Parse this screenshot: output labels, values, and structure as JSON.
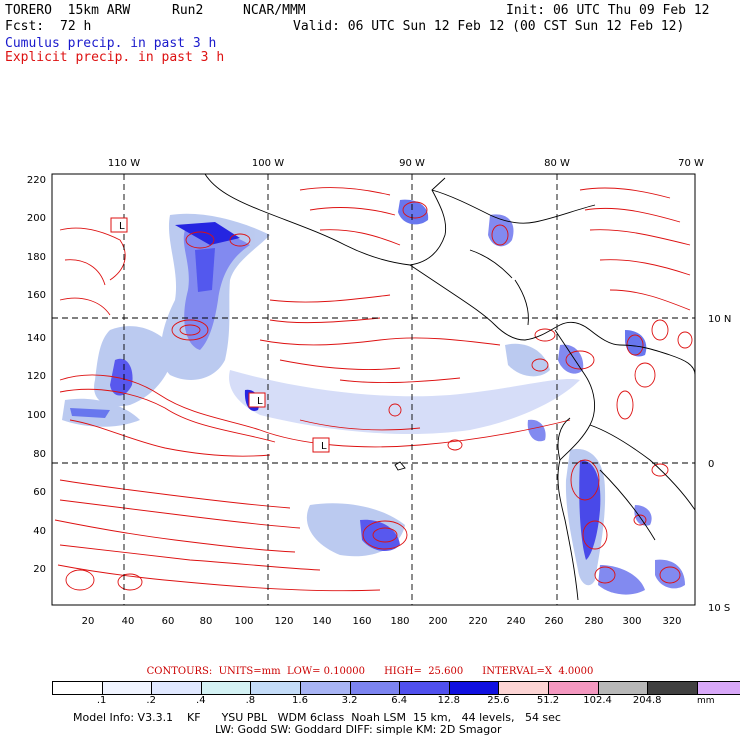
{
  "header": {
    "model": "TORERO  15km ARW",
    "run": "Run2",
    "org": "NCAR/MMM",
    "init": "Init: 06 UTC Thu 09 Feb 12",
    "fcst_label": "Fcst:",
    "fcst_value": "72 h",
    "valid": "Valid: 06 UTC Sun 12 Feb 12 (00 CST Sun 12 Feb 12)",
    "cumulus": "Cumulus precip. in past 3 h",
    "explicit": "Explicit precip. in past 3 h"
  },
  "map": {
    "top_lon_labels": [
      "110 W",
      "100 W",
      "90 W",
      "80 W",
      "70 W"
    ],
    "right_lat_labels": [
      "10 N",
      "0",
      "10 S"
    ],
    "left_y_labels": [
      "220",
      "200",
      "180",
      "160",
      "140",
      "120",
      "100",
      "80",
      "60",
      "40",
      "20"
    ],
    "bottom_x_labels": [
      "20",
      "40",
      "60",
      "80",
      "100",
      "120",
      "140",
      "160",
      "180",
      "200",
      "220",
      "240",
      "260",
      "280",
      "300",
      "320"
    ],
    "low_markers": [
      "L",
      "L",
      "L"
    ],
    "colors": {
      "contour": "#dd1111",
      "coast": "#000000",
      "precip_light": "#b8c8f0",
      "precip_mid": "#6677ee",
      "precip_heavy": "#1a1ae0"
    }
  },
  "contours_line": "CONTOURS:  UNITS=mm  LOW= 0.10000      HIGH=  25.600      INTERVAL=X  4.0000",
  "colorbar": {
    "colors": [
      "#ffffff",
      "#f0f4ff",
      "#e0e8ff",
      "#d4f2f4",
      "#c4dcf8",
      "#a8b4f4",
      "#7c84f0",
      "#5050ee",
      "#1010e0",
      "#fcd4d4",
      "#f498c0",
      "#b8b8b8",
      "#404040",
      "#d8a8f8"
    ],
    "labels": [
      ".1",
      ".2",
      ".4",
      ".8",
      "1.6",
      "3.2",
      "6.4",
      "12.8",
      "25.6",
      "51.2",
      "102.4",
      "204.8"
    ],
    "units": "mm"
  },
  "footer": {
    "line1": "Model Info: V3.3.1    KF      YSU PBL   WDM 6class  Noah LSM  15 km,   44 levels,   54 sec",
    "line2": "LW: Godd SW: Goddard DIFF: simple KM: 2D Smagor"
  }
}
